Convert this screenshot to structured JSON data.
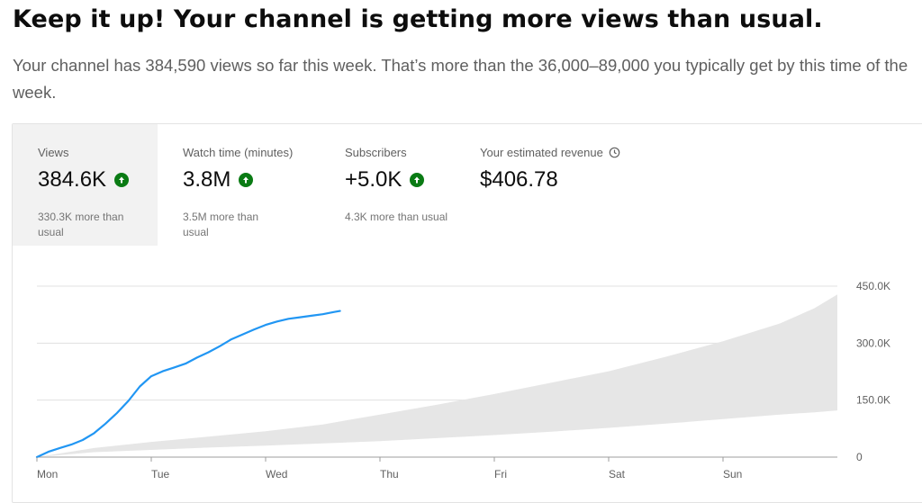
{
  "headline": "Keep it up! Your channel is getting more views than usual.",
  "description": "Your channel has 384,590 views so far this week. That’s more than the 36,000–89,000 you typically get by this time of the week.",
  "metrics": [
    {
      "label": "Views",
      "value": "384.6K",
      "sub": "330.3K more than usual",
      "trend": "up",
      "selected": true
    },
    {
      "label": "Watch time (minutes)",
      "value": "3.8M",
      "sub": "3.5M more than usual",
      "trend": "up",
      "selected": false
    },
    {
      "label": "Subscribers",
      "value": "+5.0K",
      "sub": "4.3K more than usual",
      "trend": "up",
      "selected": false
    },
    {
      "label": "Your estimated revenue",
      "value": "$406.78",
      "icon": "clock-icon",
      "selected": false
    }
  ],
  "colors": {
    "line": "#2196f3",
    "band": "#e6e6e6",
    "up_badge": "#0a7b14",
    "selected_tab": "#f2f2f2"
  },
  "chart_data": {
    "type": "line",
    "x_labels": [
      "Mon",
      "Tue",
      "Wed",
      "Thu",
      "Fri",
      "Sat",
      "Sun"
    ],
    "x_range_days": [
      0,
      7
    ],
    "y_ticks": [
      {
        "value": 0,
        "label": "0"
      },
      {
        "value": 150000,
        "label": "150.0K"
      },
      {
        "value": 300000,
        "label": "300.0K"
      },
      {
        "value": 450000,
        "label": "450.0K"
      }
    ],
    "ylim": [
      0,
      450000
    ],
    "grid": true,
    "series": [
      {
        "kind": "line",
        "x_days": [
          0,
          0.1,
          0.2,
          0.3,
          0.4,
          0.5,
          0.6,
          0.7,
          0.8,
          0.9,
          1.0,
          1.1,
          1.2,
          1.3,
          1.4,
          1.5,
          1.6,
          1.7,
          1.8,
          1.9,
          2.0,
          2.1,
          2.2,
          2.3,
          2.4,
          2.5,
          2.6,
          2.65
        ],
        "y": [
          0,
          14000,
          24000,
          33000,
          45000,
          63000,
          88000,
          116000,
          148000,
          186000,
          213000,
          226000,
          236000,
          246000,
          262000,
          276000,
          292000,
          310000,
          323000,
          336000,
          348000,
          357000,
          364000,
          368000,
          372000,
          376000,
          382000,
          384590
        ]
      },
      {
        "kind": "band",
        "x_days": [
          0,
          0.5,
          1,
          1.5,
          2,
          2.5,
          3,
          3.5,
          4,
          4.5,
          5,
          5.5,
          6,
          6.5,
          6.8,
          7
        ],
        "upper": [
          0,
          24000,
          40000,
          54000,
          68000,
          86000,
          112000,
          138000,
          166000,
          196000,
          226000,
          264000,
          305000,
          352000,
          392000,
          428000
        ],
        "lower": [
          0,
          13000,
          19000,
          25000,
          30000,
          36000,
          42000,
          50000,
          58000,
          67000,
          77000,
          88000,
          100000,
          112000,
          118000,
          123000
        ]
      }
    ]
  }
}
